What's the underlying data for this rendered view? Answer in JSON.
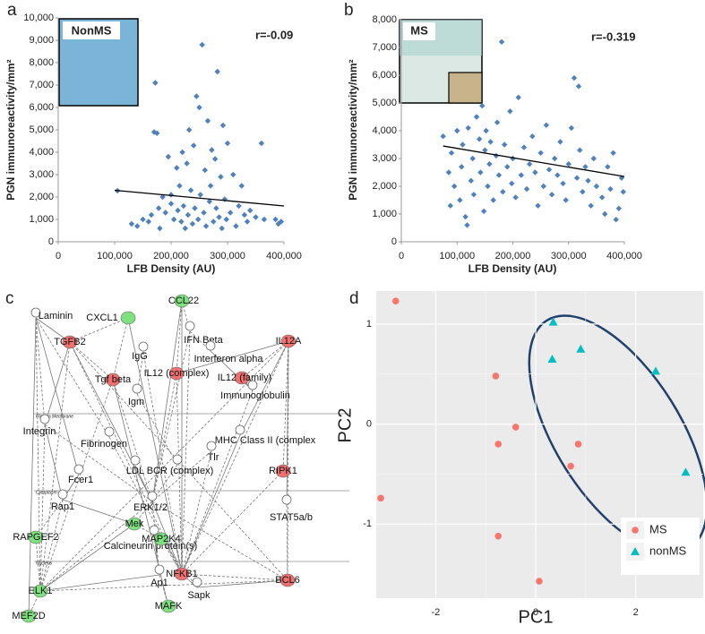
{
  "panel_labels": [
    "a",
    "b",
    "c",
    "d"
  ],
  "chart_data": [
    {
      "type": "scatter",
      "x_label": "LFB Density (AU)",
      "y_label": "PGN immunoreactivity/mm²",
      "annotation": "r=-0.09",
      "inset_label": "NonMS",
      "color": "#4f81bd",
      "marker": "diamond",
      "xlim": [
        0,
        400000
      ],
      "ylim": [
        0,
        10000
      ],
      "xticks": [
        0,
        {
          "value": 100000,
          "label": "100,000"
        },
        {
          "value": 200000,
          "label": "200,000"
        },
        {
          "value": 300000,
          "label": "300,000"
        },
        {
          "value": 400000,
          "label": "400,000"
        }
      ],
      "yticks": [
        0,
        {
          "value": 1000,
          "label": "1,000"
        },
        {
          "value": 2000,
          "label": "2,000"
        },
        {
          "value": 3000,
          "label": "3,000"
        },
        {
          "value": 4000,
          "label": "4,000"
        },
        {
          "value": 5000,
          "label": "5,000"
        },
        {
          "value": 6000,
          "label": "6,000"
        },
        {
          "value": 7000,
          "label": "7,000"
        },
        {
          "value": 8000,
          "label": "8,000"
        },
        {
          "value": 9000,
          "label": "9,000"
        },
        {
          "value": 10000,
          "label": "10,000"
        }
      ],
      "x": [
        105000,
        130000,
        140000,
        150000,
        160000,
        165000,
        170000,
        172000,
        175000,
        178000,
        180000,
        185000,
        190000,
        195000,
        200000,
        200000,
        205000,
        210000,
        212000,
        215000,
        218000,
        220000,
        222000,
        225000,
        228000,
        230000,
        232000,
        235000,
        238000,
        240000,
        242000,
        245000,
        248000,
        250000,
        252000,
        255000,
        258000,
        260000,
        262000,
        265000,
        268000,
        270000,
        272000,
        275000,
        278000,
        280000,
        282000,
        285000,
        288000,
        290000,
        292000,
        295000,
        298000,
        300000,
        305000,
        310000,
        315000,
        320000,
        325000,
        330000,
        335000,
        340000,
        350000,
        360000,
        365000,
        385000,
        390000,
        395000
      ],
      "values": [
        2280,
        800,
        700,
        1000,
        900,
        1200,
        4900,
        7100,
        4850,
        1500,
        600,
        2000,
        1300,
        3800,
        1700,
        2100,
        1000,
        3300,
        1400,
        2500,
        900,
        4000,
        1600,
        600,
        3500,
        1200,
        5000,
        2300,
        800,
        4300,
        1500,
        6500,
        1000,
        6000,
        2100,
        8800,
        1300,
        3200,
        700,
        5400,
        1800,
        2500,
        4100,
        900,
        3700,
        1500,
        7600,
        1100,
        2900,
        600,
        5200,
        1900,
        1000,
        4400,
        1300,
        3000,
        700,
        1600,
        2500,
        1200,
        900,
        1400,
        1100,
        4400,
        1000,
        1000,
        800,
        900
      ],
      "trendline": {
        "x": [
          100000,
          400000
        ],
        "values": [
          2300,
          1600
        ]
      }
    },
    {
      "type": "scatter",
      "x_label": "LFB Density (AU)",
      "y_label": "PGN immunoreactivity/mm²",
      "annotation": "r=-0.319",
      "inset_label": "MS",
      "color": "#4f81bd",
      "marker": "diamond",
      "xlim": [
        0,
        400000
      ],
      "ylim": [
        0,
        8000
      ],
      "xticks": [
        0,
        {
          "value": 100000,
          "label": "100,000"
        },
        {
          "value": 200000,
          "label": "200,000"
        },
        {
          "value": 300000,
          "label": "300,000"
        },
        {
          "value": 400000,
          "label": "400,000"
        }
      ],
      "yticks": [
        0,
        {
          "value": 1000,
          "label": "1,000"
        },
        {
          "value": 2000,
          "label": "2,000"
        },
        {
          "value": 3000,
          "label": "3,000"
        },
        {
          "value": 4000,
          "label": "4,000"
        },
        {
          "value": 5000,
          "label": "5,000"
        },
        {
          "value": 6000,
          "label": "6,000"
        },
        {
          "value": 7000,
          "label": "7,000"
        },
        {
          "value": 8000,
          "label": "8,000"
        }
      ],
      "x": [
        75000,
        85000,
        88000,
        90000,
        95000,
        100000,
        105000,
        108000,
        110000,
        115000,
        118000,
        120000,
        125000,
        128000,
        130000,
        135000,
        140000,
        142000,
        145000,
        148000,
        150000,
        152000,
        155000,
        158000,
        160000,
        165000,
        170000,
        172000,
        175000,
        180000,
        182000,
        185000,
        190000,
        195000,
        198000,
        200000,
        205000,
        210000,
        215000,
        220000,
        225000,
        230000,
        235000,
        240000,
        245000,
        250000,
        255000,
        260000,
        265000,
        270000,
        275000,
        280000,
        285000,
        290000,
        295000,
        300000,
        305000,
        310000,
        315000,
        318000,
        320000,
        325000,
        330000,
        335000,
        340000,
        345000,
        350000,
        360000,
        365000,
        370000,
        375000,
        380000,
        385000,
        390000,
        395000,
        398000
      ],
      "values": [
        3800,
        2500,
        1300,
        3200,
        2000,
        4000,
        1500,
        2700,
        3500,
        900,
        600,
        4100,
        2200,
        3000,
        1700,
        4500,
        3700,
        2500,
        4900,
        1100,
        3300,
        4000,
        2000,
        2800,
        3600,
        1500,
        3100,
        4300,
        2400,
        7200,
        1800,
        3500,
        2700,
        4700,
        2100,
        3000,
        1600,
        5200,
        2400,
        3400,
        1900,
        2800,
        3800,
        2500,
        1300,
        3200,
        2000,
        4200,
        2600,
        1700,
        3000,
        2400,
        3600,
        2100,
        1500,
        2800,
        4100,
        5900,
        2300,
        5600,
        3300,
        1800,
        2700,
        2200,
        1300,
        3000,
        2000,
        1600,
        1000,
        2700,
        1900,
        3200,
        800,
        1200,
        2300,
        1800
      ],
      "trendline": {
        "x": [
          75000,
          400000
        ],
        "values": [
          3450,
          2350
        ]
      }
    },
    {
      "type": "scatter",
      "x_label": "PC1",
      "y_label": "PC2",
      "legend": "bottom-right",
      "grid": true,
      "xlim": [
        -3.19,
        3.35
      ],
      "ylim": [
        -1.74,
        1.33
      ],
      "xticks": [
        -2,
        0,
        2
      ],
      "yticks": [
        -1,
        0,
        1
      ],
      "series": [
        {
          "name": "MS",
          "color": "#f8766d",
          "marker": "circle",
          "x": [
            -2.8,
            -0.8,
            -0.4,
            -0.75,
            0.85,
            0.7,
            -3.1,
            -0.75,
            0.07
          ],
          "values": [
            1.23,
            0.48,
            -0.03,
            -0.2,
            -0.2,
            -0.42,
            -0.74,
            -1.12,
            -1.57
          ]
        },
        {
          "name": "nonMS",
          "color": "#00bfc4",
          "marker": "triangle",
          "x": [
            0.35,
            0.9,
            0.33,
            2.4,
            3.0
          ],
          "values": [
            1.02,
            0.75,
            0.65,
            0.53,
            -0.48
          ]
        }
      ]
    }
  ],
  "network": {
    "regions": [
      "Plasma Membrane",
      "Cytoplasm",
      "Nucleus"
    ],
    "nodes": [
      {
        "label": "Laminin"
      },
      {
        "label": "CXCL1",
        "color": "#7ee07e"
      },
      {
        "label": "CCL22",
        "color": "#7ee07e"
      },
      {
        "label": "TGFB2",
        "color": "#f07070"
      },
      {
        "label": "IFN Beta"
      },
      {
        "label": "IL12A",
        "color": "#f07070"
      },
      {
        "label": "IgG"
      },
      {
        "label": "Interferon alpha"
      },
      {
        "label": "Tgf beta",
        "color": "#f07070"
      },
      {
        "label": "IL12 (complex)",
        "color": "#f07070"
      },
      {
        "label": "IL12 (family)",
        "color": "#f07070"
      },
      {
        "label": "Igm"
      },
      {
        "label": "Immunoglobulin"
      },
      {
        "label": "Integrin"
      },
      {
        "label": "Fibrinogen"
      },
      {
        "label": "MHC Class II (complex"
      },
      {
        "label": "Tlr"
      },
      {
        "label": "LDL"
      },
      {
        "label": "BCR (complex)"
      },
      {
        "label": "RIPK1",
        "color": "#f07070"
      },
      {
        "label": "Fcer1"
      },
      {
        "label": "ERK1/2"
      },
      {
        "label": "Rap1"
      },
      {
        "label": "STAT5a/b"
      },
      {
        "label": "Mek",
        "color": "#7ee07e"
      },
      {
        "label": "RAPGEF2",
        "color": "#7ee07e"
      },
      {
        "label": "Calcineurin protein(s)"
      },
      {
        "label": "MAP2K4",
        "color": "#7ee07e"
      },
      {
        "label": "Ap1"
      },
      {
        "label": "NFKB1",
        "color": "#f07070"
      },
      {
        "label": "BCL6",
        "color": "#f07070"
      },
      {
        "label": "ELK1",
        "color": "#7ee07e"
      },
      {
        "label": "Sapk"
      },
      {
        "label": "MAFK",
        "color": "#7ee07e"
      },
      {
        "label": "MEF2D",
        "color": "#7ee07e"
      }
    ]
  }
}
